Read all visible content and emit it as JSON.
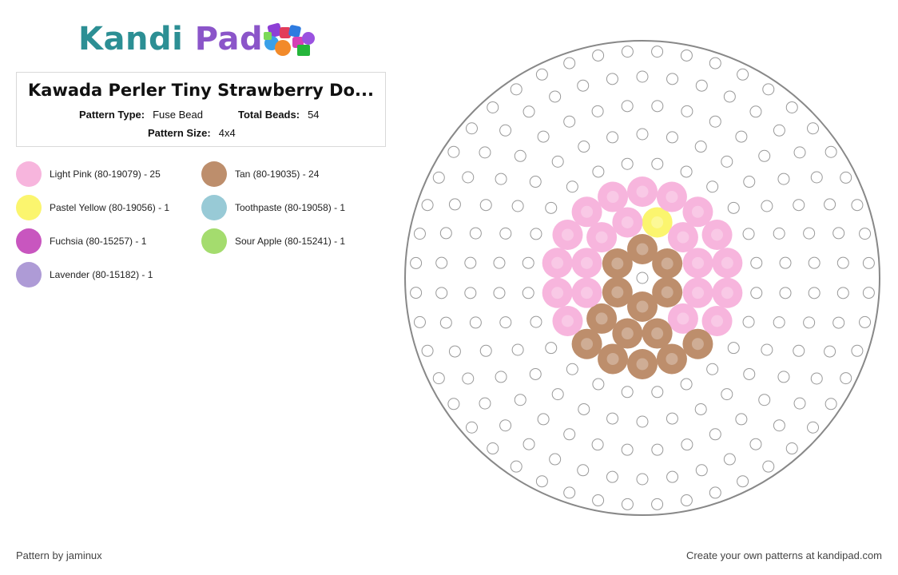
{
  "brand": {
    "logo_word1": "Kandi",
    "logo_word2": "Pad"
  },
  "pattern": {
    "title": "Kawada Perler Tiny Strawberry Do...",
    "type_label": "Pattern Type:",
    "type_value": "Fuse Bead",
    "total_label": "Total Beads:",
    "total_value": "54",
    "size_label": "Pattern Size:",
    "size_value": "4x4"
  },
  "legend": [
    {
      "label": "Light Pink (80-19079) - 25",
      "color": "#f7b5dd"
    },
    {
      "label": "Tan (80-19035) - 24",
      "color": "#bd8e6c"
    },
    {
      "label": "Pastel Yellow (80-19056) - 1",
      "color": "#fbf56e"
    },
    {
      "label": "Toothpaste (80-19058) - 1",
      "color": "#98cad6"
    },
    {
      "label": "Fuchsia (80-15257) - 1",
      "color": "#c856bf"
    },
    {
      "label": "Sour Apple (80-15241) - 1",
      "color": "#a4dc6e"
    },
    {
      "label": "Lavender (80-15182) - 1",
      "color": "#ae9bd6"
    }
  ],
  "footer": {
    "author": "Pattern by jaminux",
    "promo": "Create your own patterns at kandipad.com"
  }
}
